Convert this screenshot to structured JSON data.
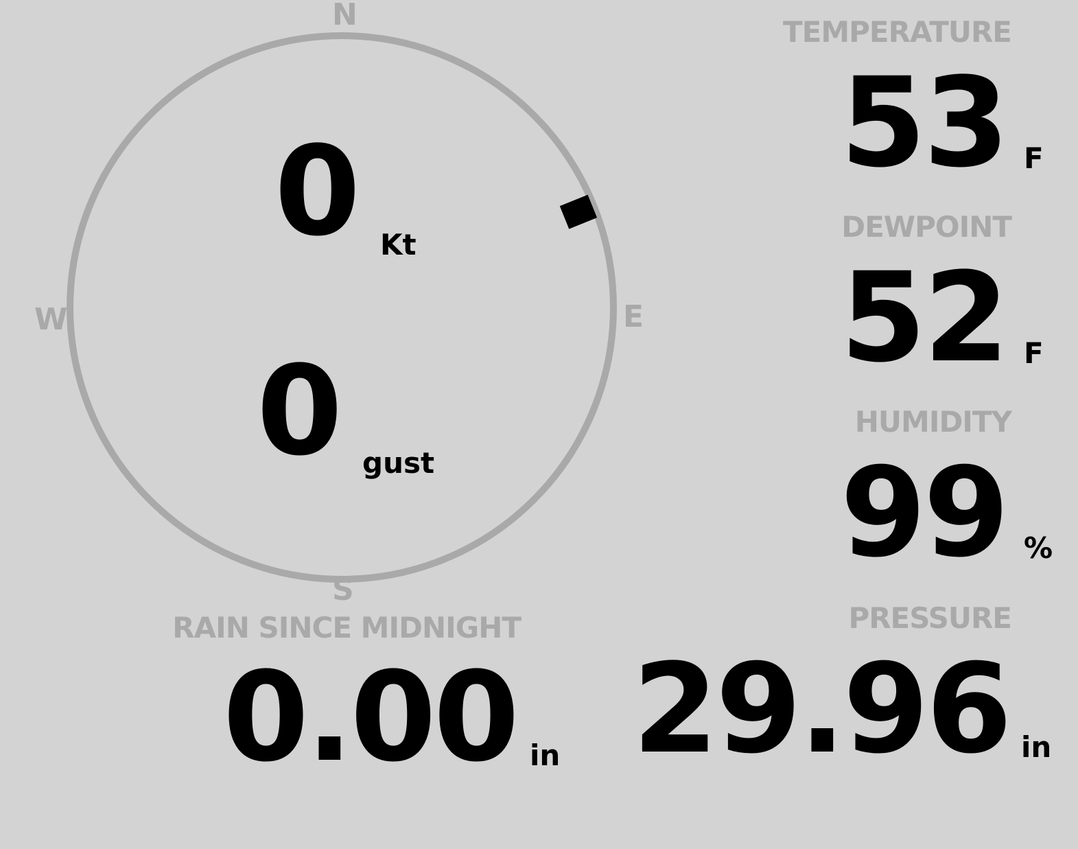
{
  "wind": {
    "speed": "0",
    "speed_unit": "Kt",
    "gust": "0",
    "gust_unit": "gust",
    "direction_degrees": 68,
    "compass": {
      "n": "N",
      "e": "E",
      "s": "S",
      "w": "W"
    }
  },
  "temperature": {
    "label": "TEMPERATURE",
    "value": "53",
    "unit": "F"
  },
  "dewpoint": {
    "label": "DEWPOINT",
    "value": "52",
    "unit": "F"
  },
  "humidity": {
    "label": "HUMIDITY",
    "value": "99",
    "unit": "%"
  },
  "rain": {
    "label": "RAIN SINCE MIDNIGHT",
    "value": "0.00",
    "unit": "in"
  },
  "pressure": {
    "label": "PRESSURE",
    "value": "29.96",
    "unit": "in"
  },
  "colors": {
    "background": "#d3d3d3",
    "muted": "#a9a9a9",
    "value": "#000000"
  }
}
